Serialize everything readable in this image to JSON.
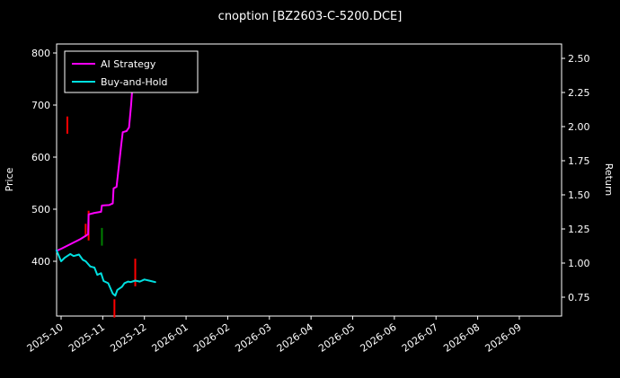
{
  "title": "cnoption [BZ2603-C-5200.DCE]",
  "chart_data": {
    "type": "line",
    "title": "cnoption [BZ2603-C-5200.DCE]",
    "ylabel_left": "Price",
    "ylabel_right": "Return",
    "grid": false,
    "background_color": "#000000",
    "text_color": "#ffffff",
    "axis_color": "#ffffff",
    "legend_position": "upper left",
    "x_tick_labels": [
      "2025-10",
      "2025-11",
      "2025-12",
      "2026-01",
      "2026-02",
      "2026-03",
      "2026-04",
      "2026-05",
      "2026-06",
      "2026-07",
      "2026-08",
      "2026-09"
    ],
    "left_axis_ticks": [
      400,
      500,
      600,
      700,
      800
    ],
    "right_axis_tick_labels": [
      "0.75",
      "1.00",
      "1.25",
      "1.50",
      "1.75",
      "2.00",
      "2.25",
      "2.50"
    ],
    "price_axis_range": [
      297,
      817
    ],
    "return_axis_range": [
      0.6,
      2.66
    ],
    "x_unit": "months since 2025-10",
    "series": [
      {
        "name": "AI Strategy",
        "color": "#ff00ff",
        "x": [
          -0.11,
          0.0,
          0.15,
          0.3,
          0.45,
          0.59,
          0.65,
          0.66,
          0.8,
          0.96,
          0.98,
          1.15,
          1.24,
          1.26,
          1.33,
          1.41,
          1.45,
          1.48,
          1.57,
          1.63,
          1.68,
          1.74
        ],
        "y": [
          420,
          424,
          430,
          436,
          442,
          449,
          452,
          490,
          493,
          495,
          507,
          508,
          511,
          540,
          543,
          600,
          628,
          648,
          650,
          657,
          700,
          768
        ]
      },
      {
        "name": "Buy-and-Hold",
        "color": "#00e0e0",
        "x": [
          -0.11,
          0.0,
          0.09,
          0.22,
          0.3,
          0.43,
          0.52,
          0.59,
          0.7,
          0.8,
          0.87,
          0.96,
          1.02,
          1.13,
          1.24,
          1.3,
          1.35,
          1.46,
          1.52,
          1.61,
          1.67,
          1.78,
          1.89,
          2.0,
          2.11,
          2.26
        ],
        "y": [
          421,
          400,
          407,
          414,
          410,
          413,
          403,
          400,
          390,
          388,
          374,
          377,
          362,
          358,
          338,
          334,
          345,
          351,
          358,
          361,
          360,
          363,
          361,
          365,
          363,
          360
        ]
      }
    ],
    "candles": [
      {
        "x": 0.15,
        "low": 645,
        "high": 678,
        "color": "#ff0000"
      },
      {
        "x": 0.59,
        "low": 447,
        "high": 472,
        "color": "#ff0000"
      },
      {
        "x": 0.66,
        "low": 440,
        "high": 497,
        "color": "#ff0000"
      },
      {
        "x": 0.98,
        "low": 430,
        "high": 464,
        "color": "#008000"
      },
      {
        "x": 1.28,
        "low": 292,
        "high": 327,
        "color": "#ff0000"
      },
      {
        "x": 1.78,
        "low": 352,
        "high": 405,
        "color": "#ff0000"
      }
    ]
  }
}
